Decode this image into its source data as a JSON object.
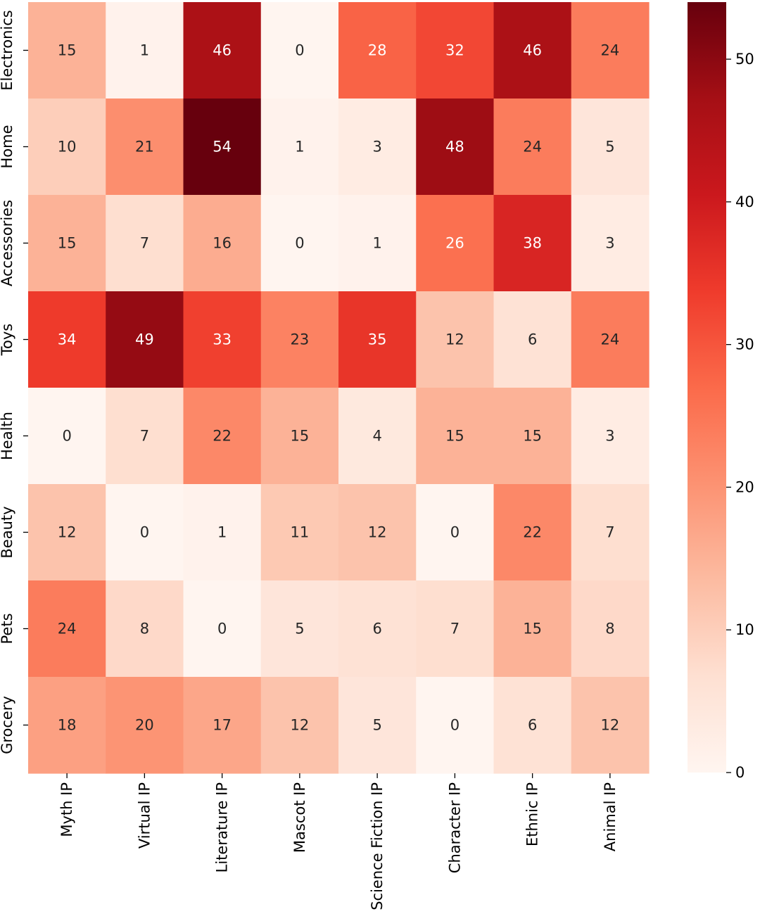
{
  "chart_data": {
    "type": "heatmap",
    "title": "",
    "xlabel": "",
    "ylabel": "",
    "x_categories": [
      "Myth IP",
      "Virtual IP",
      "Literature IP",
      "Mascot IP",
      "Science Fiction IP",
      "Character IP",
      "Ethnic IP",
      "Animal IP"
    ],
    "y_categories": [
      "Electronics",
      "Home",
      "Accessories",
      "Toys",
      "Health",
      "Beauty",
      "Pets",
      "Grocery"
    ],
    "values": [
      [
        15,
        1,
        46,
        0,
        28,
        32,
        46,
        24
      ],
      [
        10,
        21,
        54,
        1,
        3,
        48,
        24,
        5
      ],
      [
        15,
        7,
        16,
        0,
        1,
        26,
        38,
        3
      ],
      [
        34,
        49,
        33,
        23,
        35,
        12,
        6,
        24
      ],
      [
        0,
        7,
        22,
        15,
        4,
        15,
        15,
        3
      ],
      [
        12,
        0,
        1,
        11,
        12,
        0,
        22,
        7
      ],
      [
        24,
        8,
        0,
        5,
        6,
        7,
        15,
        8
      ],
      [
        18,
        20,
        17,
        12,
        5,
        0,
        6,
        12
      ]
    ],
    "colormap": "Reds",
    "value_range": [
      0,
      54
    ],
    "colorbar": {
      "ticks": [
        0,
        10,
        20,
        30,
        40,
        50
      ],
      "tick_labels": [
        "0",
        "10",
        "20",
        "30",
        "40",
        "50"
      ]
    },
    "annotated": true,
    "grid": false
  }
}
